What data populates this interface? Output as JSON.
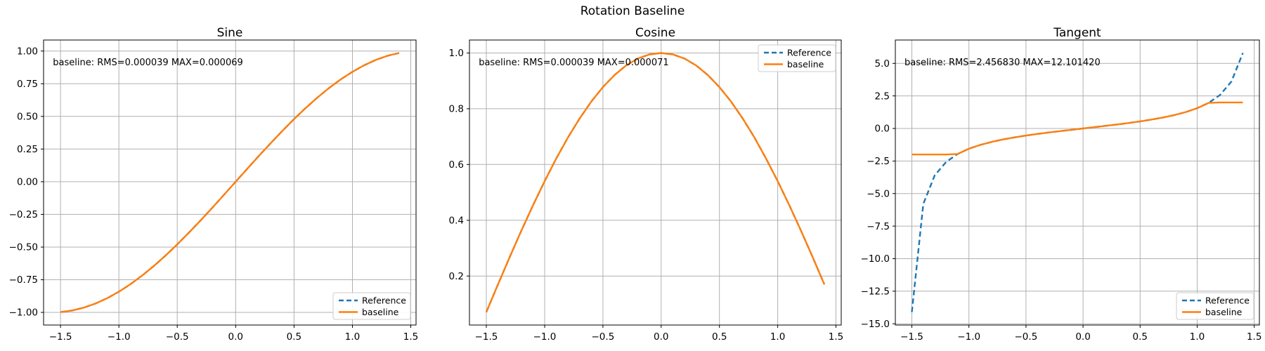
{
  "figure": {
    "suptitle": "Rotation Baseline",
    "background": "#ffffff"
  },
  "styles": {
    "reference_color": "#1f77b4",
    "baseline_color": "#ff7f0e",
    "grid_color": "#b0b0b0",
    "spine_color": "#000000",
    "text_color": "#000000",
    "legend_border": "#cccccc",
    "legend_fill": "#ffffff"
  },
  "chart_data": [
    {
      "type": "line",
      "title": "Sine",
      "annotation": "baseline: RMS=0.000039 MAX=0.000069",
      "legend_loc": "lower right",
      "grid": true,
      "xlim": [
        -1.645,
        1.545
      ],
      "ylim": [
        -1.0966,
        1.0846
      ],
      "x_ticks": [
        -1.5,
        -1.0,
        -0.5,
        0.0,
        0.5,
        1.0,
        1.5
      ],
      "x_tick_labels": [
        "−1.5",
        "−1.0",
        "−0.5",
        "0.0",
        "0.5",
        "1.0",
        "1.5"
      ],
      "y_ticks": [
        -1.0,
        -0.75,
        -0.5,
        -0.25,
        0.0,
        0.25,
        0.5,
        0.75,
        1.0
      ],
      "y_tick_labels": [
        "−1.00",
        "−0.75",
        "−0.50",
        "−0.25",
        "0.00",
        "0.25",
        "0.50",
        "0.75",
        "1.00"
      ],
      "x": [
        -1.5,
        -1.4,
        -1.3,
        -1.2,
        -1.1,
        -1.0,
        -0.9,
        -0.8,
        -0.7,
        -0.6,
        -0.5,
        -0.4,
        -0.3,
        -0.2,
        -0.1,
        0.0,
        0.1,
        0.2,
        0.3,
        0.4,
        0.5,
        0.6,
        0.7,
        0.8,
        0.9,
        1.0,
        1.1,
        1.2,
        1.3,
        1.4
      ],
      "series": [
        {
          "name": "Reference",
          "color": "#1f77b4",
          "linestyle": "dashed",
          "y": [
            -0.997495,
            -0.98545,
            -0.963558,
            -0.932039,
            -0.891207,
            -0.841471,
            -0.783327,
            -0.717356,
            -0.644218,
            -0.564642,
            -0.479426,
            -0.389418,
            -0.29552,
            -0.198669,
            -0.099833,
            0.0,
            0.099833,
            0.198669,
            0.29552,
            0.389418,
            0.479426,
            0.564642,
            0.644218,
            0.717356,
            0.783327,
            0.841471,
            0.891207,
            0.932039,
            0.963558,
            0.98545
          ]
        },
        {
          "name": "baseline",
          "color": "#ff7f0e",
          "linestyle": "solid",
          "y": [
            -0.997495,
            -0.98545,
            -0.963558,
            -0.932039,
            -0.891207,
            -0.841471,
            -0.783327,
            -0.717356,
            -0.644218,
            -0.564642,
            -0.479426,
            -0.389418,
            -0.29552,
            -0.198669,
            -0.099833,
            0.0,
            0.099833,
            0.198669,
            0.29552,
            0.389418,
            0.479426,
            0.564642,
            0.644218,
            0.717356,
            0.783327,
            0.841471,
            0.891207,
            0.932039,
            0.963558,
            0.98545
          ]
        }
      ]
    },
    {
      "type": "line",
      "title": "Cosine",
      "annotation": "baseline: RMS=0.000039 MAX=0.000071",
      "legend_loc": "upper right",
      "grid": true,
      "xlim": [
        -1.645,
        1.545
      ],
      "ylim": [
        0.0243,
        1.0465
      ],
      "x_ticks": [
        -1.5,
        -1.0,
        -0.5,
        0.0,
        0.5,
        1.0,
        1.5
      ],
      "x_tick_labels": [
        "−1.5",
        "−1.0",
        "−0.5",
        "0.0",
        "0.5",
        "1.0",
        "1.5"
      ],
      "y_ticks": [
        0.2,
        0.4,
        0.6,
        0.8,
        1.0
      ],
      "y_tick_labels": [
        "0.2",
        "0.4",
        "0.6",
        "0.8",
        "1.0"
      ],
      "x": [
        -1.5,
        -1.4,
        -1.3,
        -1.2,
        -1.1,
        -1.0,
        -0.9,
        -0.8,
        -0.7,
        -0.6,
        -0.5,
        -0.4,
        -0.3,
        -0.2,
        -0.1,
        0.0,
        0.1,
        0.2,
        0.3,
        0.4,
        0.5,
        0.6,
        0.7,
        0.8,
        0.9,
        1.0,
        1.1,
        1.2,
        1.3,
        1.4
      ],
      "series": [
        {
          "name": "Reference",
          "color": "#1f77b4",
          "linestyle": "dashed",
          "y": [
            0.070737,
            0.169967,
            0.267499,
            0.362358,
            0.453596,
            0.540302,
            0.62161,
            0.696707,
            0.764842,
            0.825336,
            0.877583,
            0.921061,
            0.955336,
            0.980067,
            0.995004,
            1.0,
            0.995004,
            0.980067,
            0.955336,
            0.921061,
            0.877583,
            0.825336,
            0.764842,
            0.696707,
            0.62161,
            0.540302,
            0.453596,
            0.362358,
            0.267499,
            0.169967
          ]
        },
        {
          "name": "baseline",
          "color": "#ff7f0e",
          "linestyle": "solid",
          "y": [
            0.070737,
            0.169967,
            0.267499,
            0.362358,
            0.453596,
            0.540302,
            0.62161,
            0.696707,
            0.764842,
            0.825336,
            0.877583,
            0.921061,
            0.955336,
            0.980067,
            0.995004,
            1.0,
            0.995004,
            0.980067,
            0.955336,
            0.921061,
            0.877583,
            0.825336,
            0.764842,
            0.696707,
            0.62161,
            0.540302,
            0.453596,
            0.362358,
            0.267499,
            0.169967
          ]
        }
      ]
    },
    {
      "type": "line",
      "title": "Tangent",
      "annotation": "baseline: RMS=2.456830 MAX=12.101420",
      "legend_loc": "lower right",
      "grid": true,
      "xlim": [
        -1.645,
        1.545
      ],
      "ylim": [
        -15.0964,
        6.7928
      ],
      "x_ticks": [
        -1.5,
        -1.0,
        -0.5,
        0.0,
        0.5,
        1.0,
        1.5
      ],
      "x_tick_labels": [
        "−1.5",
        "−1.0",
        "−0.5",
        "0.0",
        "0.5",
        "1.0",
        "1.5"
      ],
      "y_ticks": [
        -15.0,
        -12.5,
        -10.0,
        -7.5,
        -5.0,
        -2.5,
        0.0,
        2.5,
        5.0
      ],
      "y_tick_labels": [
        "−15.0",
        "−12.5",
        "−10.0",
        "−7.5",
        "−5.0",
        "−2.5",
        "0.0",
        "2.5",
        "5.0"
      ],
      "x": [
        -1.5,
        -1.4,
        -1.3,
        -1.2,
        -1.1,
        -1.0,
        -0.9,
        -0.8,
        -0.7,
        -0.6,
        -0.5,
        -0.4,
        -0.3,
        -0.2,
        -0.1,
        0.0,
        0.1,
        0.2,
        0.3,
        0.4,
        0.5,
        0.6,
        0.7,
        0.8,
        0.9,
        1.0,
        1.1,
        1.2,
        1.3,
        1.4
      ],
      "series": [
        {
          "name": "Reference",
          "color": "#1f77b4",
          "linestyle": "dashed",
          "y": [
            -14.10142,
            -5.797884,
            -3.602102,
            -2.572152,
            -1.96476,
            -1.557408,
            -1.260158,
            -1.029639,
            -0.842288,
            -0.684137,
            -0.546302,
            -0.422793,
            -0.309336,
            -0.20271,
            -0.100335,
            0.0,
            0.100335,
            0.20271,
            0.309336,
            0.422793,
            0.546302,
            0.684137,
            0.842288,
            1.029639,
            1.260158,
            1.557408,
            1.96476,
            2.572152,
            3.602102,
            5.797884
          ]
        },
        {
          "name": "baseline",
          "color": "#ff7f0e",
          "linestyle": "solid",
          "y": [
            -2.0,
            -2.0,
            -2.0,
            -2.0,
            -1.96476,
            -1.557408,
            -1.260158,
            -1.029639,
            -0.842288,
            -0.684137,
            -0.546302,
            -0.422793,
            -0.309336,
            -0.20271,
            -0.100335,
            0.0,
            0.100335,
            0.20271,
            0.309336,
            0.422793,
            0.546302,
            0.684137,
            0.842288,
            1.029639,
            1.260158,
            1.557408,
            1.96476,
            2.0,
            2.0,
            2.0
          ]
        }
      ]
    }
  ]
}
